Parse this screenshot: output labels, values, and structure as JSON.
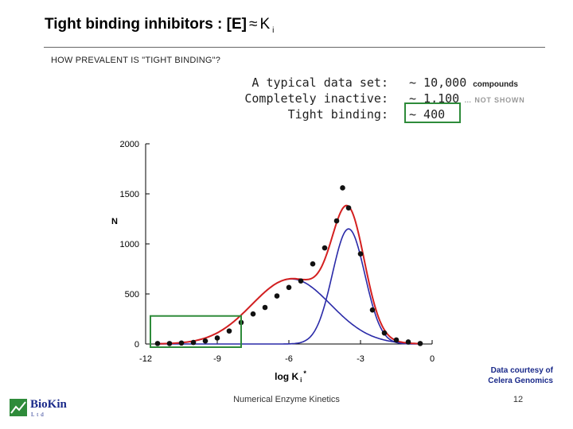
{
  "slide": {
    "title": "Tight binding inhibitors : [E]",
    "title_approx": "≈",
    "title_k": "K",
    "title_sub": "i",
    "subtitle": "HOW PREVALENT IS \"TIGHT BINDING\"?",
    "dataset_rows": [
      {
        "label": "A typical data set:",
        "value": "~ 10,000",
        "note": "compounds"
      },
      {
        "label": "Completely inactive:",
        "value": "~ 1,100",
        "note": "… NOT SHOWN"
      },
      {
        "label": "Tight binding:",
        "value": "~ 400",
        "note": ""
      }
    ],
    "courtesy_line1": "Data courtesy of",
    "courtesy_line2": "Celera Genomics",
    "footer": "Numerical Enzyme Kinetics",
    "page_number": "12",
    "logo_text": "BioKin",
    "logo_sub": "Ltd"
  },
  "colors": {
    "total_curve": "#d42020",
    "component_curves": "#2a2aa8",
    "points": "#111111",
    "highlight_box": "#2e8b3a"
  },
  "chart_data": {
    "type": "scatter",
    "ylabel": "N",
    "xlabel": "log K",
    "xlabel_sub": "i",
    "xlabel_sup": "*",
    "xlim": [
      -12,
      0
    ],
    "ylim": [
      0,
      2000
    ],
    "x_ticks": [
      -12,
      -9,
      -6,
      -3,
      0
    ],
    "x_tick_labels": [
      "-12",
      "-9",
      "-6",
      "-3",
      "0"
    ],
    "y_ticks": [
      0,
      500,
      1000,
      1500,
      2000
    ],
    "y_tick_labels": [
      "0",
      "500",
      "1000",
      "1500",
      "2000"
    ],
    "grid": false,
    "points": {
      "x": [
        -11.5,
        -11.0,
        -10.5,
        -10.0,
        -9.5,
        -9.0,
        -8.5,
        -8.0,
        -7.5,
        -7.0,
        -6.5,
        -6.0,
        -5.5,
        -5.0,
        -4.5,
        -4.0,
        -3.75,
        -3.5,
        -3.0,
        -2.5,
        -2.0,
        -1.5,
        -1.0,
        -0.5
      ],
      "y": [
        5,
        5,
        10,
        15,
        30,
        60,
        130,
        215,
        300,
        365,
        480,
        565,
        630,
        800,
        960,
        1230,
        1560,
        1360,
        900,
        340,
        110,
        40,
        20,
        5
      ]
    },
    "components": [
      {
        "mean": -5.9,
        "sd": 1.65,
        "peak": 650
      },
      {
        "mean": -3.5,
        "sd": 0.68,
        "peak": 1150
      }
    ],
    "highlight_range": {
      "x": [
        -11.8,
        -8.0
      ],
      "y": [
        0,
        280
      ]
    }
  }
}
